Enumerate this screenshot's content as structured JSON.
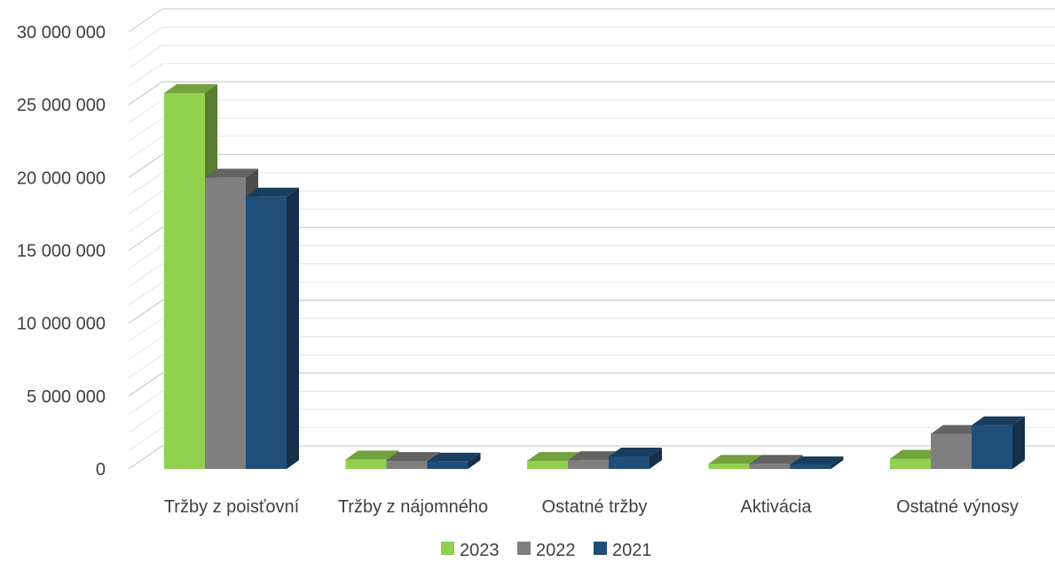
{
  "chart_data": {
    "type": "bar",
    "style": "3d-clustered-column",
    "categories": [
      "Tržby z poisťovní",
      "Tržby z nájomného",
      "Ostatné tržby",
      "Aktivácia",
      "Ostatné výnosy"
    ],
    "series": [
      {
        "name": "2023",
        "color": "#92d050",
        "values": [
          25800000,
          650000,
          550000,
          350000,
          700000
        ]
      },
      {
        "name": "2022",
        "color": "#7f7f7f",
        "values": [
          20000000,
          550000,
          600000,
          350000,
          2400000
        ]
      },
      {
        "name": "2021",
        "color": "#1f4e79",
        "values": [
          18700000,
          500000,
          850000,
          250000,
          3000000
        ]
      }
    ],
    "y_ticks": [
      "0",
      "5 000 000",
      "10 000 000",
      "15 000 000",
      "20 000 000",
      "25 000 000",
      "30 000 000"
    ],
    "ylim": [
      0,
      30000000
    ],
    "grid": true,
    "legend_position": "bottom",
    "title": "",
    "xlabel": "",
    "ylabel": ""
  }
}
